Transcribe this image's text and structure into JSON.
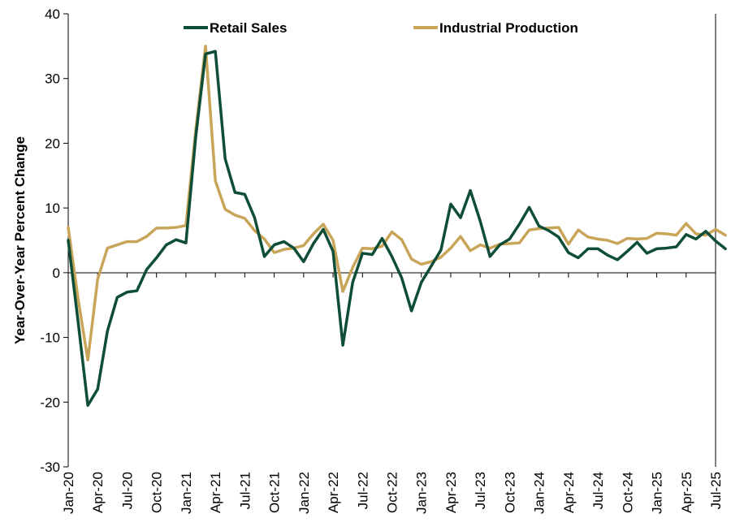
{
  "chart_data": {
    "type": "line",
    "title": "",
    "xlabel": "",
    "ylabel": "Year-Over-Year Percent Change",
    "ylim": [
      -30,
      40
    ],
    "yticks": [
      "-30",
      "-20",
      "-10",
      "0",
      "10",
      "20",
      "30",
      "40"
    ],
    "grid": false,
    "legend_position": "top",
    "x_tick_labels": [
      "Jan-20",
      "Apr-20",
      "Jul-20",
      "Oct-20",
      "Jan-21",
      "Apr-21",
      "Jul-21",
      "Oct-21",
      "Jan-22",
      "Apr-22",
      "Jul-22",
      "Oct-22",
      "Jan-23",
      "Apr-23",
      "Jul-23",
      "Oct-23",
      "Jan-24",
      "Apr-24",
      "Jul-24",
      "Oct-24",
      "Jan-25",
      "Apr-25",
      "Jul-25"
    ],
    "x_tick_month_index": [
      0,
      3,
      6,
      9,
      12,
      15,
      18,
      21,
      24,
      27,
      30,
      33,
      36,
      39,
      42,
      45,
      48,
      51,
      54,
      57,
      60,
      63,
      66
    ],
    "x_month_range": [
      0,
      66
    ],
    "categories": [
      "Jan-20",
      "Feb-20",
      "Mar-20",
      "Apr-20",
      "May-20",
      "Jun-20",
      "Jul-20",
      "Aug-20",
      "Sep-20",
      "Oct-20",
      "Nov-20",
      "Dec-20",
      "Jan-21",
      "Feb-21",
      "Mar-21",
      "Apr-21",
      "May-21",
      "Jun-21",
      "Jul-21",
      "Aug-21",
      "Sep-21",
      "Oct-21",
      "Nov-21",
      "Dec-21",
      "Jan-22",
      "Feb-22",
      "Mar-22",
      "Apr-22",
      "May-22",
      "Jun-22",
      "Jul-22",
      "Aug-22",
      "Sep-22",
      "Oct-22",
      "Nov-22",
      "Dec-22",
      "Jan-23",
      "Feb-23",
      "Mar-23",
      "Apr-23",
      "May-23",
      "Jun-23",
      "Jul-23",
      "Aug-23",
      "Sep-23",
      "Oct-23",
      "Nov-23",
      "Dec-23",
      "Jan-24",
      "Feb-24",
      "Mar-24",
      "Apr-24",
      "May-24",
      "Jun-24",
      "Jul-24",
      "Aug-24",
      "Sep-24",
      "Oct-24",
      "Nov-24",
      "Dec-24",
      "Jan-25",
      "Feb-25",
      "Mar-25",
      "Apr-25",
      "May-25",
      "Jun-25",
      "Jul-25",
      "Aug-25"
    ],
    "series": [
      {
        "name": "Retail Sales",
        "color": "#0e4d36",
        "values": [
          5.0,
          -7.5,
          -20.5,
          -18.0,
          -9.0,
          -3.8,
          -3.0,
          -2.8,
          0.5,
          2.3,
          4.3,
          5.1,
          4.6,
          21.0,
          33.8,
          34.2,
          17.6,
          12.4,
          12.1,
          8.5,
          2.5,
          4.3,
          4.8,
          3.8,
          1.7,
          4.5,
          6.7,
          3.3,
          -11.2,
          -1.5,
          3.0,
          2.8,
          5.3,
          2.5,
          -0.8,
          -5.9,
          -1.5,
          1.0,
          3.5,
          10.6,
          8.5,
          12.7,
          8.0,
          2.5,
          4.3,
          5.2,
          7.5,
          10.1,
          7.2,
          6.5,
          5.5,
          3.1,
          2.3,
          3.7,
          3.7,
          2.7,
          2.0,
          3.3,
          4.7,
          3.0,
          3.7,
          3.8,
          4.0,
          5.9,
          5.2,
          6.4,
          4.9,
          3.7
        ]
      },
      {
        "name": "Industrial Production",
        "color": "#c9a55a",
        "values": [
          7.0,
          -4.0,
          -13.5,
          -1.0,
          3.8,
          4.3,
          4.8,
          4.8,
          5.6,
          6.9,
          6.9,
          7.0,
          7.3,
          22.0,
          35.0,
          14.2,
          9.8,
          8.9,
          8.4,
          6.5,
          5.2,
          3.1,
          3.6,
          3.8,
          4.2,
          6.0,
          7.5,
          5.0,
          -2.9,
          0.8,
          3.8,
          3.7,
          4.1,
          6.3,
          5.1,
          2.1,
          1.3,
          1.7,
          2.4,
          3.8,
          5.6,
          3.4,
          4.3,
          3.8,
          4.4,
          4.5,
          4.6,
          6.6,
          6.8,
          6.9,
          7.0,
          4.4,
          6.6,
          5.5,
          5.2,
          5.0,
          4.5,
          5.3,
          5.2,
          5.3,
          6.1,
          6.0,
          5.8,
          7.6,
          6.0,
          5.8,
          6.7,
          5.8
        ]
      }
    ]
  }
}
